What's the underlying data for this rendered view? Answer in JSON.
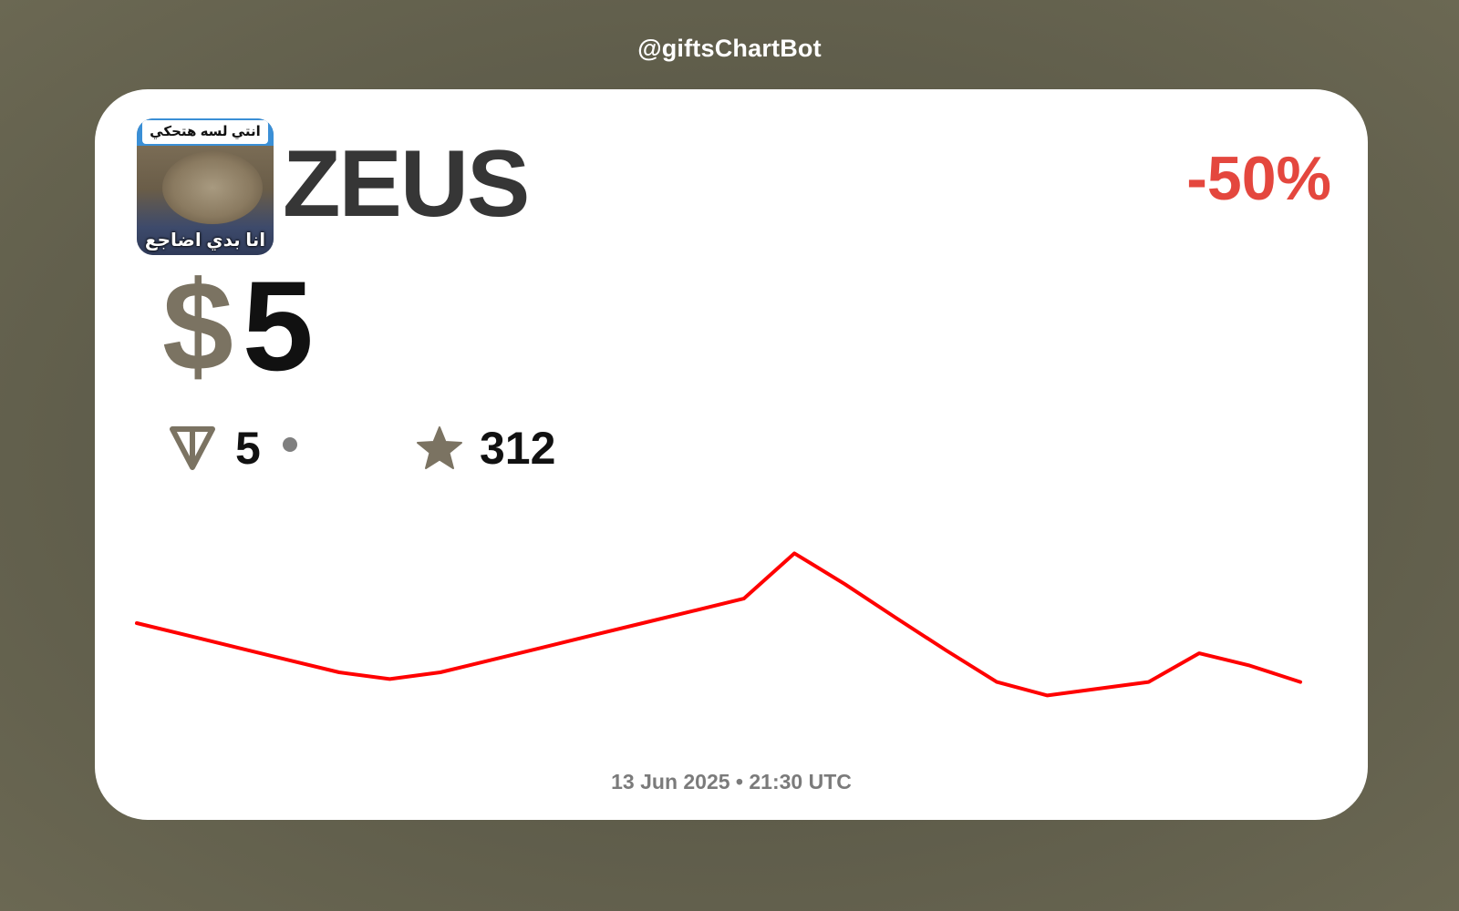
{
  "watermark": "@giftsChartBot",
  "gift": {
    "name": "ZEUS",
    "change": "-50%",
    "avatar": {
      "caption_top": "انتي لسه هتحكي",
      "caption_bottom": "انا بدي اضاجع"
    }
  },
  "price": {
    "currency_symbol": "$",
    "value": "5"
  },
  "stats": {
    "ton_icon": "ton-diamond-icon",
    "ton_value": "5",
    "stars_icon": "star-icon",
    "stars_value": "312"
  },
  "chart_data": {
    "type": "line",
    "x": [
      0,
      1,
      2,
      3,
      4,
      5,
      6,
      7,
      8,
      9,
      10,
      11,
      12,
      13,
      14,
      15,
      16,
      17,
      18,
      19,
      20,
      21,
      22,
      23
    ],
    "series": [
      {
        "color": "#ff0000",
        "values": [
          60,
          54.4,
          48.7,
          43.1,
          37.5,
          34.4,
          37.5,
          43.1,
          48.7,
          54.4,
          60,
          65.6,
          71.2,
          91.9,
          77.8,
          62.5,
          47.5,
          33.1,
          26.9,
          30,
          33.1,
          46.2,
          40.6,
          33.1
        ]
      }
    ],
    "ylim": [
      0,
      100
    ],
    "grid": false,
    "axes_visible": false
  },
  "timestamp": "13 Jun 2025 • 21:30 UTC",
  "colors": {
    "change_negative": "#e4473e",
    "line": "#ff0000",
    "accent_muted": "#7b7362"
  }
}
